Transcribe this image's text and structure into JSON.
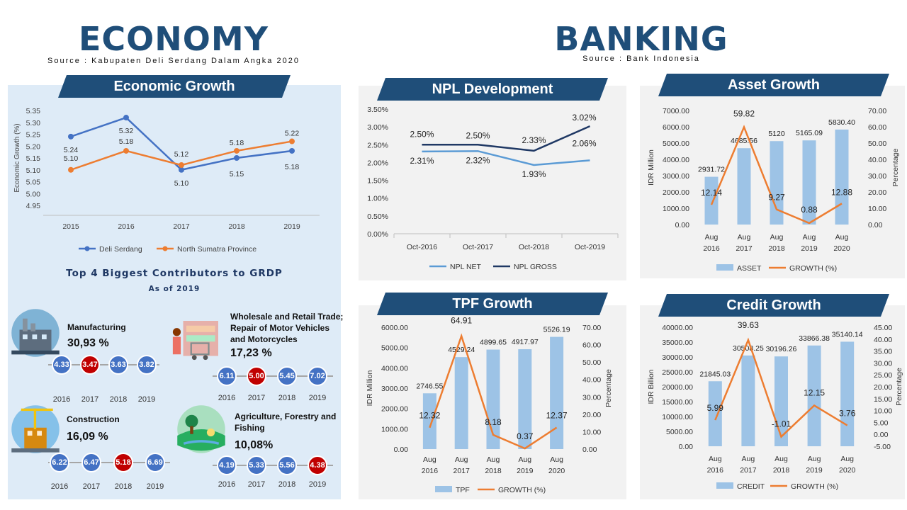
{
  "economy": {
    "title": "ECONOMY",
    "source": "Source : Kabupaten Deli Serdang Dalam Angka 2020"
  },
  "banking": {
    "title": "BANKING",
    "source": "Source : Bank Indonesia"
  },
  "colors": {
    "navy": "#1F4E79",
    "blue_line": "#4472C4",
    "orange": "#ED7D31",
    "bar_blue": "#9DC3E6",
    "npl_net": "#5B9BD5",
    "npl_gross": "#1F3864",
    "highlight_red": "#C00000",
    "panel_left_bg": "#DEEBF7",
    "panel_right_bg": "#F2F2F2"
  },
  "contributors": {
    "title": "Top 4 Biggest Contributors to GRDP",
    "subtitle": "As of 2019",
    "sectors": [
      {
        "name_lines": [
          "Manufacturing"
        ],
        "share": "30,93 %",
        "icon": "factory-icon",
        "values": [
          "4.33",
          "3.47",
          "3.63",
          "3.82"
        ],
        "years": [
          "2016",
          "2017",
          "2018",
          "2019"
        ],
        "highlight": 1
      },
      {
        "name_lines": [
          "Wholesale and Retail Trade;",
          "Repair of Motor Vehicles",
          "and Motorcycles"
        ],
        "share": "17,23 %",
        "icon": "retail-shop-icon",
        "values": [
          "6.11",
          "5.00",
          "5.45",
          "7.02"
        ],
        "years": [
          "2016",
          "2017",
          "2018",
          "2019"
        ],
        "highlight": 1
      },
      {
        "name_lines": [
          "Construction"
        ],
        "share": "16,09 %",
        "icon": "construction-icon",
        "values": [
          "6.22",
          "6.47",
          "5.18",
          "6.69"
        ],
        "years": [
          "2016",
          "2017",
          "2018",
          "2019"
        ],
        "highlight": 2
      },
      {
        "name_lines": [
          "Agriculture, Forestry and",
          "Fishing"
        ],
        "share": "10,08%",
        "icon": "agriculture-icon",
        "values": [
          "4.19",
          "5.33",
          "5.56",
          "4.38"
        ],
        "years": [
          "2016",
          "2017",
          "2018",
          "2019"
        ],
        "highlight": 3
      }
    ]
  },
  "chart_data": [
    {
      "id": "economic-growth",
      "type": "line",
      "title": "Economic Growth",
      "ylabel": "Economic Growth (%)",
      "x": [
        "2015",
        "2016",
        "2017",
        "2018",
        "2019"
      ],
      "ylim": [
        4.95,
        5.35
      ],
      "yticks": [
        "5.35",
        "5.30",
        "5.25",
        "5.20",
        "5.15",
        "5.10",
        "5.05",
        "5.00",
        "4.95"
      ],
      "series": [
        {
          "name": "Deli Serdang",
          "values": [
            5.24,
            5.32,
            5.1,
            5.15,
            5.18
          ],
          "labels": [
            "5.24",
            "5.32",
            "5.10",
            "5.15",
            "5.18"
          ]
        },
        {
          "name": "North Sumatra Province",
          "values": [
            5.1,
            5.18,
            5.12,
            5.18,
            5.22
          ],
          "labels": [
            "5.10",
            "5.18",
            "5.12",
            "5.18",
            "5.22"
          ]
        }
      ],
      "legend": "bottom"
    },
    {
      "id": "npl-development",
      "type": "line",
      "title": "NPL Development",
      "x": [
        "Oct-2016",
        "Oct-2017",
        "Oct-2018",
        "Oct-2019"
      ],
      "ylim": [
        0,
        3.5
      ],
      "yticks": [
        "3.50%",
        "3.00%",
        "2.50%",
        "2.00%",
        "1.50%",
        "1.00%",
        "0.50%",
        "0.00%"
      ],
      "series": [
        {
          "name": "NPL NET",
          "values": [
            2.31,
            2.32,
            1.93,
            2.06
          ],
          "labels": [
            "2.31%",
            "2.32%",
            "1.93%",
            "2.06%"
          ]
        },
        {
          "name": "NPL GROSS",
          "values": [
            2.5,
            2.5,
            2.33,
            3.02
          ],
          "labels": [
            "2.50%",
            "2.50%",
            "2.33%",
            "3.02%"
          ]
        }
      ],
      "legend": "bottom"
    },
    {
      "id": "asset-growth",
      "type": "bar",
      "title": "Asset Growth",
      "ylabel": "IDR Million",
      "y2label": "Percentage",
      "x": [
        [
          "Aug",
          "2016"
        ],
        [
          "Aug",
          "2017"
        ],
        [
          "Aug",
          "2018"
        ],
        [
          "Aug",
          "2019"
        ],
        [
          "Aug",
          "2020"
        ]
      ],
      "ylim": [
        0,
        7000
      ],
      "y2lim": [
        0,
        70
      ],
      "yticks": [
        "7000.00",
        "6000.00",
        "5000.00",
        "4000.00",
        "3000.00",
        "2000.00",
        "1000.00",
        "0.00"
      ],
      "y2ticks": [
        "70.00",
        "60.00",
        "50.00",
        "40.00",
        "30.00",
        "20.00",
        "10.00",
        "0.00"
      ],
      "series": [
        {
          "name": "ASSET",
          "kind": "bar",
          "values": [
            2931.72,
            4685.56,
            5120,
            5165.09,
            5830.4
          ],
          "labels": [
            "2931.72",
            "4685.56",
            "5120",
            "5165.09",
            "5830.40"
          ]
        },
        {
          "name": "GROWTH (%)",
          "kind": "line",
          "values": [
            12.14,
            59.82,
            9.27,
            0.88,
            12.88
          ],
          "labels": [
            "12.14",
            "59.82",
            "9.27",
            "0.88",
            "12.88"
          ]
        }
      ],
      "legend": "bottom"
    },
    {
      "id": "tpf-growth",
      "type": "bar",
      "title": "TPF Growth",
      "ylabel": "IDR Million",
      "y2label": "Percentage",
      "x": [
        [
          "Aug",
          "2016"
        ],
        [
          "Aug",
          "2017"
        ],
        [
          "Aug",
          "2018"
        ],
        [
          "Aug",
          "2019"
        ],
        [
          "Aug",
          "2020"
        ]
      ],
      "ylim": [
        0,
        6000
      ],
      "y2lim": [
        0,
        70
      ],
      "yticks": [
        "6000.00",
        "5000.00",
        "4000.00",
        "3000.00",
        "2000.00",
        "1000.00",
        "0.00"
      ],
      "y2ticks": [
        "70.00",
        "60.00",
        "50.00",
        "40.00",
        "30.00",
        "20.00",
        "10.00",
        "0.00"
      ],
      "series": [
        {
          "name": "TPF",
          "kind": "bar",
          "values": [
            2746.55,
            4529.24,
            4899.65,
            4917.97,
            5526.19
          ],
          "labels": [
            "2746.55",
            "4529.24",
            "4899.65",
            "4917.97",
            "5526.19"
          ]
        },
        {
          "name": "GROWTH (%)",
          "kind": "line",
          "values": [
            12.32,
            64.91,
            8.18,
            0.37,
            12.37
          ],
          "labels": [
            "12.32",
            "64.91",
            "8.18",
            "0.37",
            "12.37"
          ]
        }
      ],
      "legend": "bottom"
    },
    {
      "id": "credit-growth",
      "type": "bar",
      "title": "Credit Growth",
      "ylabel": "IDR Billion",
      "y2label": "Percentage",
      "x": [
        [
          "Aug",
          "2016"
        ],
        [
          "Aug",
          "2017"
        ],
        [
          "Aug",
          "2018"
        ],
        [
          "Aug",
          "2019"
        ],
        [
          "Aug",
          "2020"
        ]
      ],
      "ylim": [
        0,
        40000
      ],
      "y2lim": [
        -5,
        45
      ],
      "yticks": [
        "40000.00",
        "35000.00",
        "30000.00",
        "25000.00",
        "20000.00",
        "15000.00",
        "10000.00",
        "5000.00",
        "0.00"
      ],
      "y2ticks": [
        "45.00",
        "40.00",
        "35.00",
        "30.00",
        "25.00",
        "20.00",
        "15.00",
        "10.00",
        "5.00",
        "0.00",
        "-5.00"
      ],
      "series": [
        {
          "name": "CREDIT",
          "kind": "bar",
          "values": [
            21845.03,
            30508.25,
            30196.26,
            33866.38,
            35140.14
          ],
          "labels": [
            "21845.03",
            "30508.25",
            "30196.26",
            "33866.38",
            "35140.14"
          ]
        },
        {
          "name": "GROWTH (%)",
          "kind": "line",
          "values": [
            5.99,
            39.63,
            -1.01,
            12.15,
            3.76
          ],
          "labels": [
            "5.99",
            "39.63",
            "-1.01",
            "12.15",
            "3.76"
          ]
        }
      ],
      "legend": "bottom"
    }
  ]
}
